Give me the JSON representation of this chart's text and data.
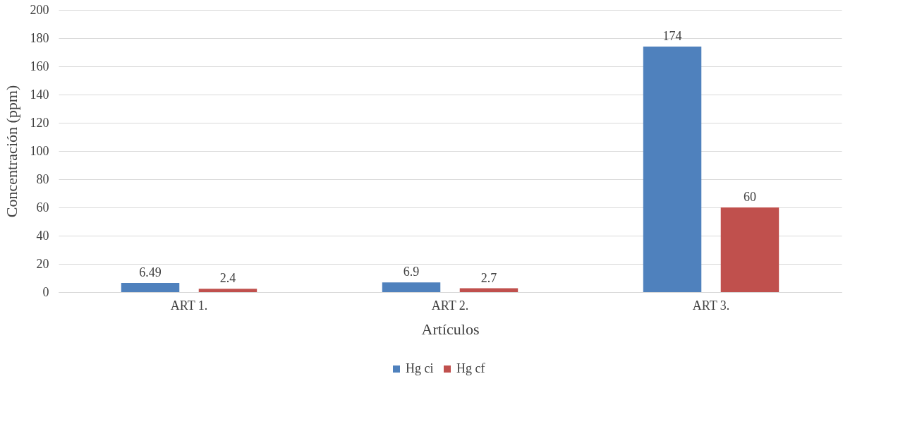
{
  "chart_data": {
    "type": "bar",
    "xlabel": "Artículos",
    "ylabel": "Concentración (ppm)",
    "categories": [
      "ART 1.",
      "ART 2.",
      "ART 3."
    ],
    "series": [
      {
        "name": "Hg ci",
        "color": "#4f81bd",
        "values": [
          6.49,
          6.9,
          174
        ]
      },
      {
        "name": "Hg cf",
        "color": "#c0504d",
        "values": [
          2.4,
          2.7,
          60
        ]
      }
    ],
    "ylim": [
      0,
      200
    ],
    "yticks": [
      0,
      20,
      40,
      60,
      80,
      100,
      120,
      140,
      160,
      180,
      200
    ],
    "grid": "y",
    "legend": "bottom",
    "data_labels": true
  }
}
